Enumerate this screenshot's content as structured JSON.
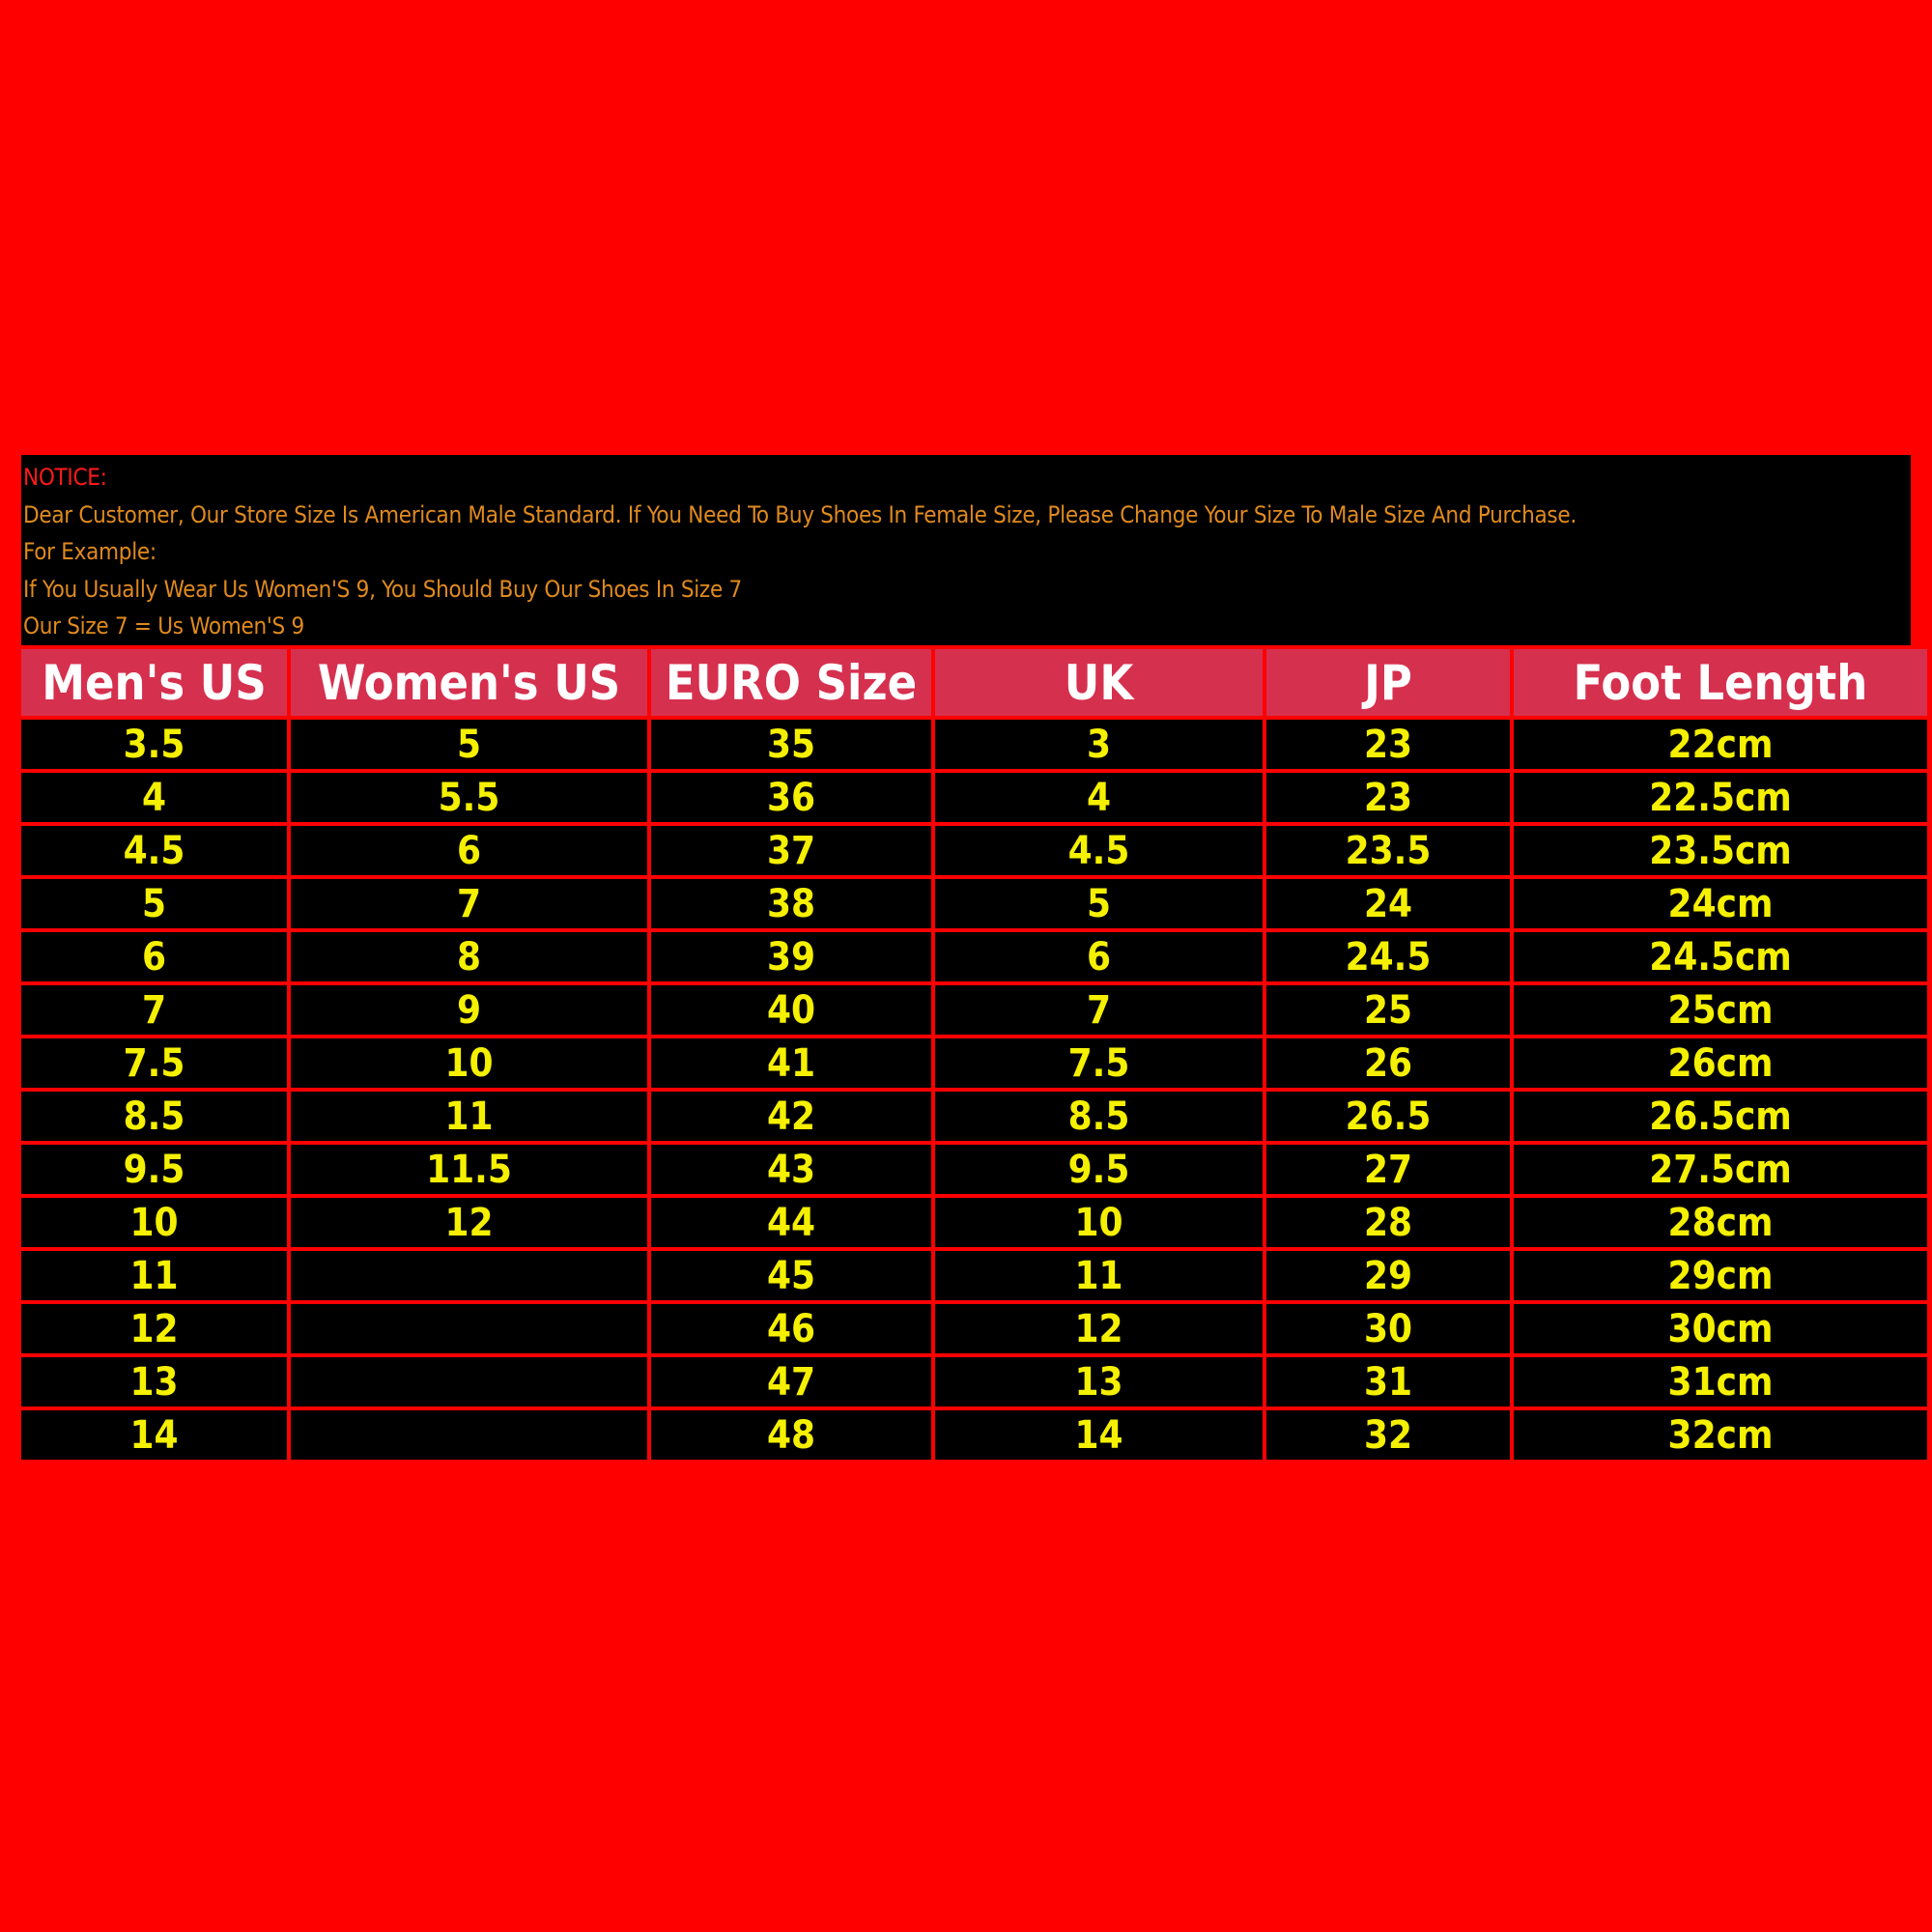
{
  "notice": {
    "title": "NOTICE:",
    "lines": [
      "Dear Customer, Our Store Size Is American Male Standard. If You Need To Buy Shoes In Female Size, Please Change Your Size To Male Size And Purchase.",
      "For Example:",
      "If You Usually Wear Us Women'S 9, You Should Buy Our Shoes In Size 7",
      "Our Size 7 = Us Women'S 9"
    ]
  },
  "colors": {
    "background": "#ff0000",
    "header": "#d6304f",
    "cell_text": "#f5f000",
    "notice_text": "#e08a1e"
  },
  "table": {
    "headers": [
      "Men's US",
      "Women's US",
      "EURO Size",
      "UK",
      "JP",
      "Foot Length"
    ],
    "rows": [
      [
        "3.5",
        "5",
        "35",
        "3",
        "23",
        "22cm"
      ],
      [
        "4",
        "5.5",
        "36",
        "4",
        "23",
        "22.5cm"
      ],
      [
        "4.5",
        "6",
        "37",
        "4.5",
        "23.5",
        "23.5cm"
      ],
      [
        "5",
        "7",
        "38",
        "5",
        "24",
        "24cm"
      ],
      [
        "6",
        "8",
        "39",
        "6",
        "24.5",
        "24.5cm"
      ],
      [
        "7",
        "9",
        "40",
        "7",
        "25",
        "25cm"
      ],
      [
        "7.5",
        "10",
        "41",
        "7.5",
        "26",
        "26cm"
      ],
      [
        "8.5",
        "11",
        "42",
        "8.5",
        "26.5",
        "26.5cm"
      ],
      [
        "9.5",
        "11.5",
        "43",
        "9.5",
        "27",
        "27.5cm"
      ],
      [
        "10",
        "12",
        "44",
        "10",
        "28",
        "28cm"
      ],
      [
        "11",
        "",
        "45",
        "11",
        "29",
        "29cm"
      ],
      [
        "12",
        "",
        "46",
        "12",
        "30",
        "30cm"
      ],
      [
        "13",
        "",
        "47",
        "13",
        "31",
        "31cm"
      ],
      [
        "14",
        "",
        "48",
        "14",
        "32",
        "32cm"
      ]
    ]
  }
}
